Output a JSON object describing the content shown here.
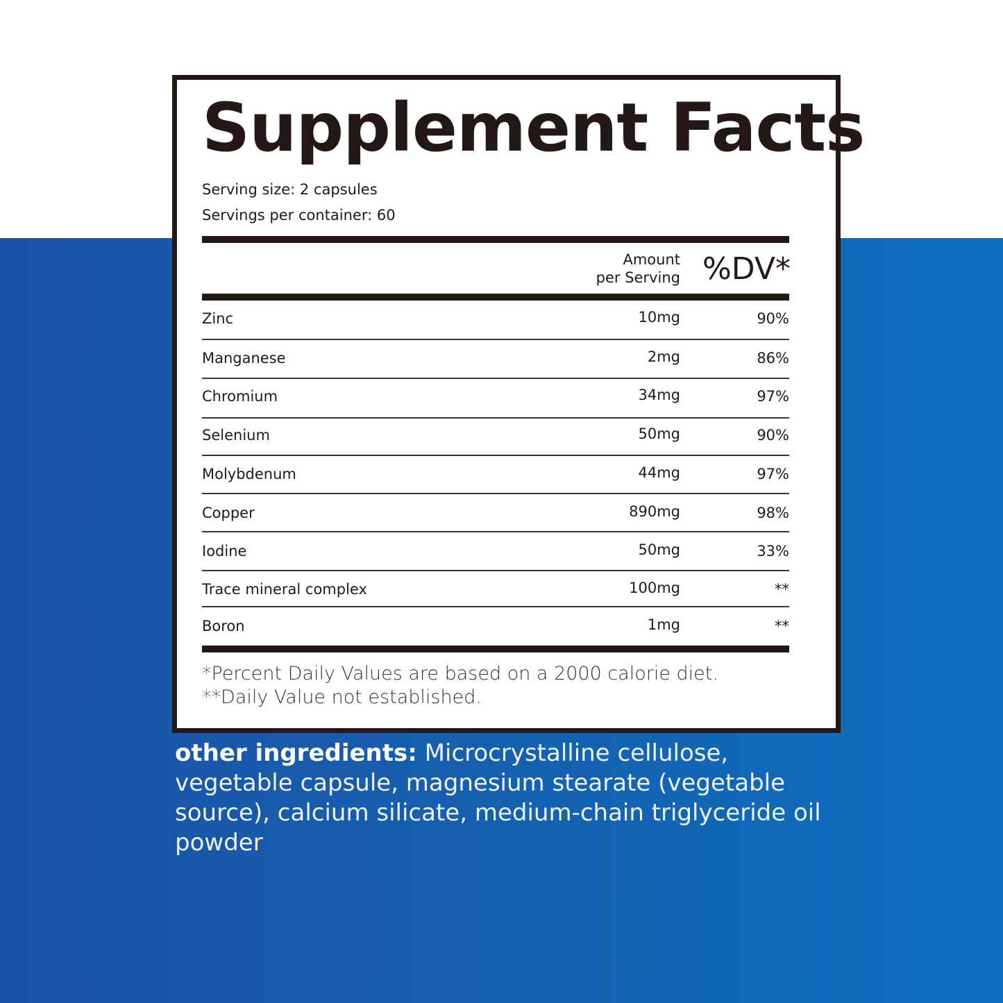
{
  "title": "Supplement Facts",
  "serving_size": "Serving size: 2 capsules",
  "servings_per_container": "Servings per container: 60",
  "header": {
    "amount_line1": "Amount",
    "amount_line2": "per Serving",
    "dv": "%DV*"
  },
  "rows": [
    {
      "name": "Zinc",
      "amount": "10mg",
      "dv": "90%"
    },
    {
      "name": "Manganese",
      "amount": "2mg",
      "dv": "86%"
    },
    {
      "name": "Chromium",
      "amount": "34mg",
      "dv": "97%"
    },
    {
      "name": "Selenium",
      "amount": "50mg",
      "dv": "90%"
    },
    {
      "name": "Molybdenum",
      "amount": "44mg",
      "dv": "97%"
    },
    {
      "name": "Copper",
      "amount": "890mg",
      "dv": "98%"
    },
    {
      "name": "Iodine",
      "amount": "50mg",
      "dv": "33%"
    },
    {
      "name": "Trace mineral complex",
      "amount": "100mg",
      "dv": "**"
    },
    {
      "name": "Boron",
      "amount": "1mg",
      "dv": "**"
    }
  ],
  "footnotes": [
    "*Percent Daily Values are based on a 2000 calorie diet.",
    "**Daily Value not established."
  ],
  "other_ingredients": {
    "label": "other ingredients:",
    "text": " Microcrystalline cellulose, vegetable capsule, magnesium stearate (vegetable source), calcium silicate, medium-chain triglyceride oil powder"
  },
  "colors": {
    "blue_left": "#1a52a6",
    "blue_right": "#0d6ebf",
    "ink": "#231815"
  }
}
